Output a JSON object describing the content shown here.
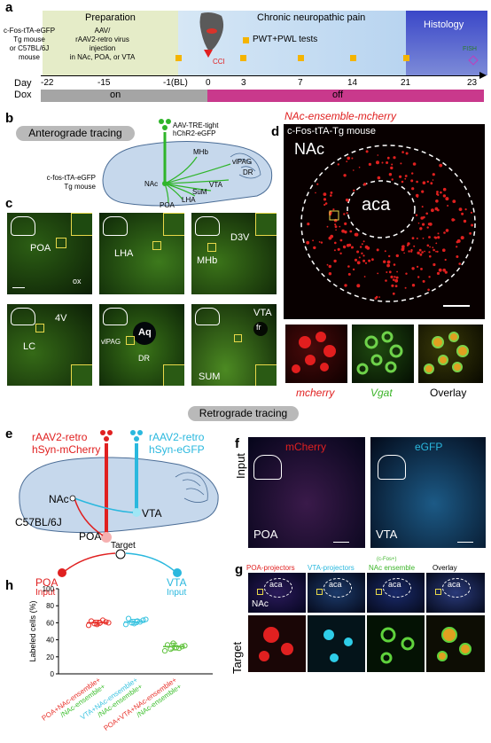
{
  "panel_a": {
    "label": "a",
    "prep_title": "Preparation",
    "mouse_lines": [
      "c-Fos-tTA-eGFP",
      "Tg mouse",
      "or C57BL/6J",
      "mouse"
    ],
    "virus_lines": [
      "AAV/",
      "rAAV2-retro virus",
      "injection",
      "in NAc, POA, or VTA"
    ],
    "pain_title": "Chronic neuropathic pain",
    "pwt_label": "PWT+PWL tests",
    "cci_label": "CCI",
    "histology_title": "Histology",
    "fish_label": "FISH",
    "day_label": "Day",
    "dox_label": "Dox",
    "days": [
      "-22",
      "-15",
      "-1(BL)",
      "0",
      "3",
      "7",
      "14",
      "21",
      "23"
    ],
    "dox_on": "on",
    "dox_off": "off"
  },
  "panel_b": {
    "label": "b",
    "title": "Anterograde tracing",
    "virus_lines": [
      "AAV-TRE-tight",
      "hChR2-eGFP"
    ],
    "mouse_lines": [
      "c-fos-tTA-eGFP",
      "Tg mouse"
    ],
    "regions": [
      "MHb",
      "vlPAG",
      "DR",
      "VTA",
      "SuM",
      "LHA",
      "POA",
      "NAc"
    ]
  },
  "panel_c": {
    "label": "c",
    "images": [
      "POA",
      "ox",
      "LHA",
      "D3V",
      "MHb",
      "4V",
      "LC",
      "Aq",
      "vlPAG",
      "DR",
      "VTA",
      "fr",
      "SUM"
    ]
  },
  "panel_d": {
    "label": "d",
    "title": "NAc-ensemble-mcherry",
    "subtitle": "c-Fos-tTA-Tg mouse",
    "region": "NAc",
    "aca": "aca",
    "channels": [
      "mcherry",
      "Vgat",
      "Overlay"
    ]
  },
  "retro_title": "Retrograde tracing",
  "panel_e": {
    "label": "e",
    "red_virus": [
      "rAAV2-retro",
      "hSyn-mCherry"
    ],
    "cyan_virus": [
      "rAAV2-retro",
      "hSyn-eGFP"
    ],
    "nac": "NAc",
    "vta": "VTA",
    "poa": "POA",
    "mouse": "C57BL/6J",
    "target": "Target",
    "poa_input": [
      "POA",
      "Input"
    ],
    "vta_input": [
      "VTA",
      "Input"
    ]
  },
  "panel_f": {
    "label": "f",
    "mcherry": "mCherry",
    "egfp": "eGFP",
    "input": "Input",
    "poa": "POA",
    "vta": "VTA"
  },
  "panel_g": {
    "label": "g",
    "poa_proj": "POA-projectors",
    "vta_proj": "VTA-projectors",
    "cfos": "(c-Fos+)",
    "nac_ens": "NAc ensemble",
    "overlay": "Overlay",
    "aca": "aca",
    "nac": "NAc",
    "target": "Target"
  },
  "panel_h": {
    "label": "h",
    "chart_data": {
      "type": "scatter",
      "ylabel": "Labeled cells (%)",
      "ylim": [
        0,
        100
      ],
      "yticks": [
        0,
        20,
        40,
        60,
        80,
        100
      ],
      "categories": [
        {
          "lines": [
            "POA+NAc-ensemble+",
            "/NAc-ensemble+"
          ],
          "colors": [
            "#e8312a",
            "#3dbf2e"
          ]
        },
        {
          "lines": [
            "VTA+NAc-ensemble+",
            "/NAc-ensemble+"
          ],
          "colors": [
            "#39c3e0",
            "#3dbf2e"
          ]
        },
        {
          "lines": [
            "POA+VTA+NAc-ensemble+",
            "/NAc-ensemble+"
          ],
          "colors": [
            "#e8312a",
            "#39c3e0",
            "#3dbf2e"
          ]
        }
      ],
      "series": [
        {
          "color": "#e8312a",
          "mean": 60,
          "sd": 3,
          "values": [
            57,
            59,
            60,
            61,
            62,
            58,
            63,
            60
          ]
        },
        {
          "color": "#39c3e0",
          "mean": 61,
          "sd": 3,
          "values": [
            58,
            60,
            62,
            63,
            65,
            59,
            61,
            64
          ]
        },
        {
          "color": "#5fc23c",
          "mean": 32,
          "sd": 4,
          "values": [
            27,
            29,
            31,
            32,
            34,
            36,
            30,
            33
          ]
        }
      ]
    }
  }
}
